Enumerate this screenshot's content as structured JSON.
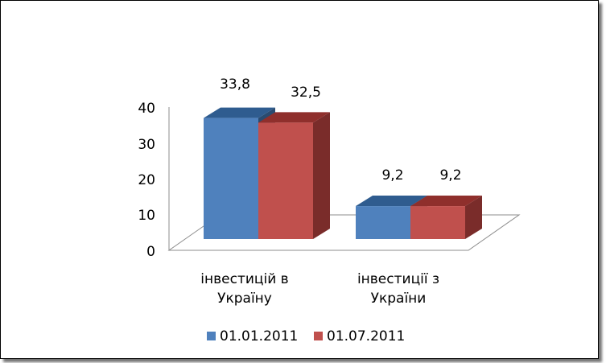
{
  "chart_data": {
    "type": "bar",
    "three_d": true,
    "categories": [
      [
        "інвестицій в",
        "Україну"
      ],
      [
        "інвестиції з",
        "України"
      ]
    ],
    "series": [
      {
        "name": "01.01.2011",
        "values": [
          33.8,
          9.2
        ],
        "color": "#4f81bd",
        "top_color": "#2f5c8f",
        "side_color": "#2a4b70"
      },
      {
        "name": "01.07.2011",
        "values": [
          32.5,
          9.2
        ],
        "color": "#c0504d",
        "top_color": "#8f2f2c",
        "side_color": "#7a2c2a"
      }
    ],
    "data_labels": [
      [
        "33,8",
        "9,2"
      ],
      [
        "32,5",
        "9,2"
      ]
    ],
    "y_ticks": [
      "0",
      "10",
      "20",
      "30",
      "40"
    ],
    "ylim": [
      0,
      40
    ],
    "legend_position": "bottom"
  }
}
